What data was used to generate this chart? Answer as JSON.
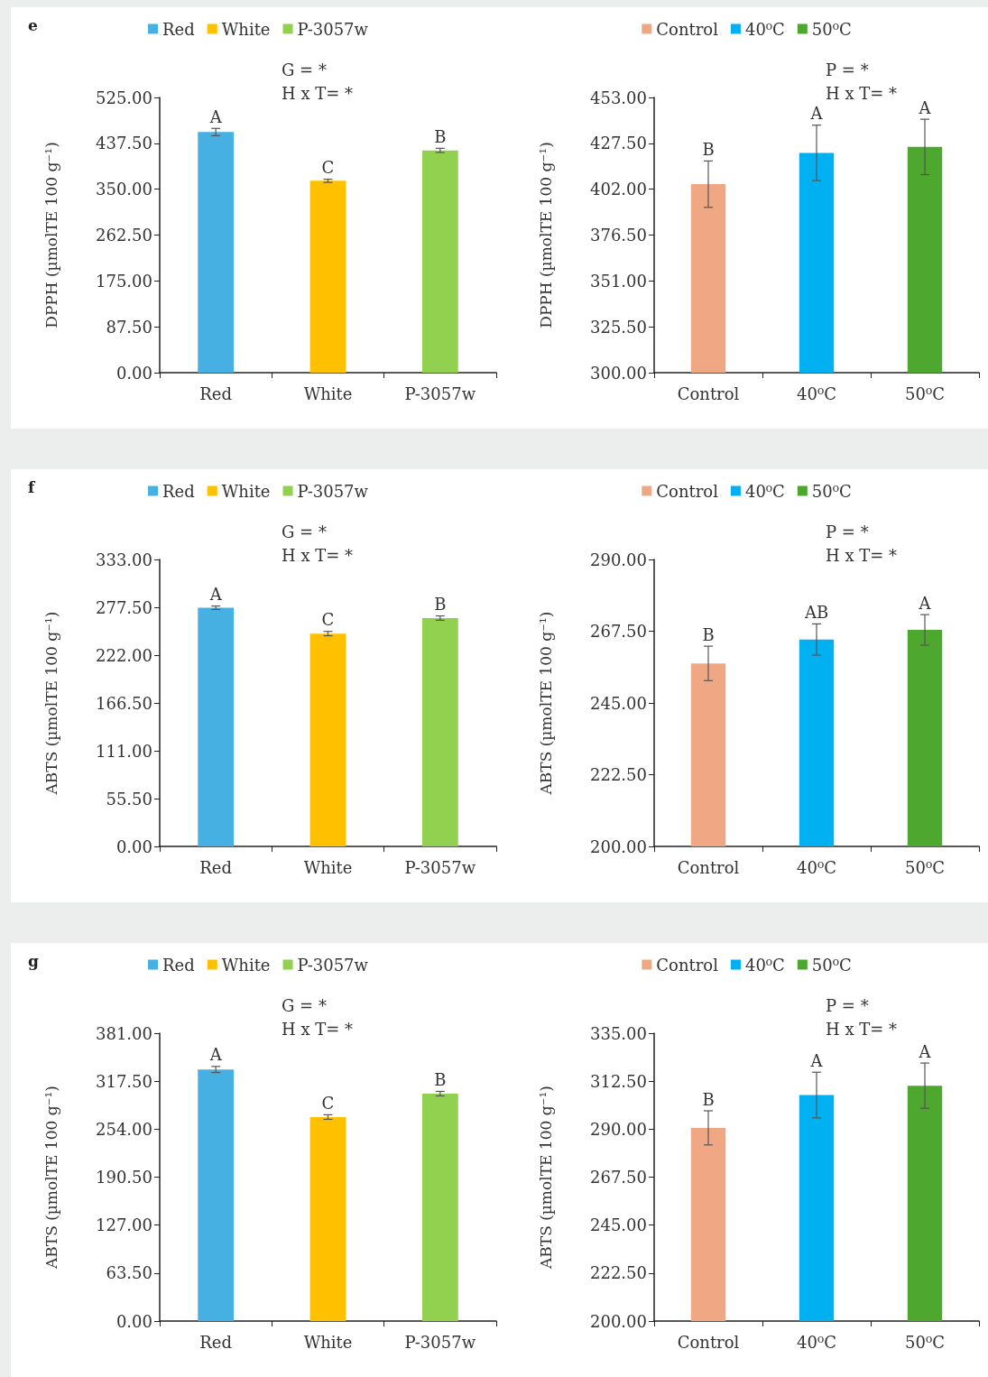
{
  "chart_data": [
    {
      "type": "bar",
      "title": "e",
      "ylabel": "DPPH (µmolTE 100 g⁻¹)",
      "categories": [
        "Red",
        "White",
        "P-3057w"
      ],
      "legend": "top",
      "grid": false,
      "ylim": [
        0,
        525
      ],
      "yticks": [
        {
          "value": 0,
          "label": "0.00"
        },
        {
          "value": 87.5,
          "label": "87.50"
        },
        {
          "value": 175,
          "label": "175.00"
        },
        {
          "value": 262.5,
          "label": "262.50"
        },
        {
          "value": 350,
          "label": "350.00"
        },
        {
          "value": 437.5,
          "label": "437.50"
        },
        {
          "value": 525,
          "label": "525.00"
        }
      ],
      "series": [
        {
          "name": "Red",
          "color": "#45b0e1",
          "values": [
            459,
            null,
            null
          ],
          "errors": [
            7,
            null,
            null
          ]
        },
        {
          "name": "White",
          "color": "#ffc000",
          "values": [
            null,
            366,
            null
          ],
          "errors": [
            null,
            3,
            null
          ]
        },
        {
          "name": "P-3057w",
          "color": "#92d050",
          "values": [
            null,
            null,
            424
          ],
          "errors": [
            null,
            null,
            4
          ]
        }
      ],
      "annotations": [
        "G = *",
        "H x T= *",
        {
          "text": "A",
          "x": "Red",
          "y": 466
        },
        {
          "text": "C",
          "x": "White",
          "y": 369
        },
        {
          "text": "B",
          "x": "P-3057w",
          "y": 428
        }
      ]
    },
    {
      "type": "bar",
      "ylabel": "DPPH (µmolTE 100 g⁻¹)",
      "categories": [
        "Control",
        "40⁰C",
        "50⁰C"
      ],
      "legend": "top",
      "grid": false,
      "ylim": [
        300,
        453
      ],
      "yticks": [
        {
          "value": 300,
          "label": "300.00"
        },
        {
          "value": 325.5,
          "label": "325.50"
        },
        {
          "value": 351,
          "label": "351.00"
        },
        {
          "value": 376.5,
          "label": "376.50"
        },
        {
          "value": 402,
          "label": "402.00"
        },
        {
          "value": 427.5,
          "label": "427.50"
        },
        {
          "value": 453,
          "label": "453.00"
        }
      ],
      "series": [
        {
          "name": "Control",
          "color": "#f0a884",
          "values": [
            404.8,
            null,
            null
          ],
          "errors": [
            12.9,
            null,
            null
          ]
        },
        {
          "name": "40⁰C",
          "color": "#00b0f0",
          "values": [
            null,
            422.2,
            null
          ],
          "errors": [
            null,
            15.4,
            null
          ]
        },
        {
          "name": "50⁰C",
          "color": "#4ea72e",
          "values": [
            null,
            null,
            425.5
          ],
          "errors": [
            null,
            null,
            15.4
          ]
        }
      ],
      "annotations": [
        "P = *",
        "H x T= *",
        {
          "text": "B",
          "x": "Control",
          "y": 417.7
        },
        {
          "text": "A",
          "x": "40⁰C",
          "y": 437.6
        },
        {
          "text": "A",
          "x": "50⁰C",
          "y": 440.9
        }
      ]
    },
    {
      "type": "bar",
      "title": "f",
      "ylabel": "ABTS (µmolTE 100 g⁻¹)",
      "categories": [
        "Red",
        "White",
        "P-3057w"
      ],
      "legend": "top",
      "grid": false,
      "ylim": [
        0,
        333
      ],
      "yticks": [
        {
          "value": 0,
          "label": "0.00"
        },
        {
          "value": 55.5,
          "label": "55.50"
        },
        {
          "value": 111,
          "label": "111.00"
        },
        {
          "value": 166.5,
          "label": "166.50"
        },
        {
          "value": 222,
          "label": "222.00"
        },
        {
          "value": 277.5,
          "label": "277.50"
        },
        {
          "value": 333,
          "label": "333.00"
        }
      ],
      "series": [
        {
          "name": "Red",
          "color": "#45b0e1",
          "values": [
            277,
            null,
            null
          ],
          "errors": [
            2,
            null,
            null
          ]
        },
        {
          "name": "White",
          "color": "#ffc000",
          "values": [
            null,
            247,
            null
          ],
          "errors": [
            null,
            2.5,
            null
          ]
        },
        {
          "name": "P-3057w",
          "color": "#92d050",
          "values": [
            null,
            null,
            265
          ],
          "errors": [
            null,
            null,
            2.5
          ]
        }
      ],
      "annotations": [
        "G = *",
        "H x T= *",
        {
          "text": "A",
          "x": "Red",
          "y": 279
        },
        {
          "text": "C",
          "x": "White",
          "y": 249.5
        },
        {
          "text": "B",
          "x": "P-3057w",
          "y": 267.5
        }
      ]
    },
    {
      "type": "bar",
      "ylabel": "ABTS (µmolTE 100 g⁻¹)",
      "categories": [
        "Control",
        "40⁰C",
        "50⁰C"
      ],
      "legend": "top",
      "grid": false,
      "ylim": [
        200,
        290
      ],
      "yticks": [
        {
          "value": 200,
          "label": "200.00"
        },
        {
          "value": 222.5,
          "label": "222.50"
        },
        {
          "value": 245,
          "label": "245.00"
        },
        {
          "value": 267.5,
          "label": "267.50"
        },
        {
          "value": 290,
          "label": "290.00"
        }
      ],
      "series": [
        {
          "name": "Control",
          "color": "#f0a884",
          "values": [
            257.4,
            null,
            null
          ],
          "errors": [
            5.4,
            null,
            null
          ]
        },
        {
          "name": "40⁰C",
          "color": "#00b0f0",
          "values": [
            null,
            264.9,
            null
          ],
          "errors": [
            null,
            4.9,
            null
          ]
        },
        {
          "name": "50⁰C",
          "color": "#4ea72e",
          "values": [
            null,
            null,
            267.9
          ],
          "errors": [
            null,
            null,
            4.8
          ]
        }
      ],
      "annotations": [
        "P = *",
        "H x T= *",
        {
          "text": "B",
          "x": "Control",
          "y": 262.8
        },
        {
          "text": "AB",
          "x": "40⁰C",
          "y": 269.8
        },
        {
          "text": "A",
          "x": "50⁰C",
          "y": 272.7
        }
      ]
    },
    {
      "type": "bar",
      "title": "g",
      "ylabel": "ABTS (µmolTE 100 g⁻¹)",
      "categories": [
        "Red",
        "White",
        "P-3057w"
      ],
      "legend": "top",
      "grid": false,
      "ylim": [
        0,
        381
      ],
      "yticks": [
        {
          "value": 0,
          "label": "0.00"
        },
        {
          "value": 63.5,
          "label": "63.50"
        },
        {
          "value": 127,
          "label": "127.00"
        },
        {
          "value": 190.5,
          "label": "190.50"
        },
        {
          "value": 254,
          "label": "254.00"
        },
        {
          "value": 317.5,
          "label": "317.50"
        },
        {
          "value": 381,
          "label": "381.00"
        }
      ],
      "series": [
        {
          "name": "Red",
          "color": "#45b0e1",
          "values": [
            333,
            null,
            null
          ],
          "errors": [
            4,
            null,
            null
          ]
        },
        {
          "name": "White",
          "color": "#ffc000",
          "values": [
            null,
            270,
            null
          ],
          "errors": [
            null,
            3,
            null
          ]
        },
        {
          "name": "P-3057w",
          "color": "#92d050",
          "values": [
            null,
            null,
            301
          ],
          "errors": [
            null,
            null,
            3
          ]
        }
      ],
      "annotations": [
        "G = *",
        "H x T= *",
        {
          "text": "A",
          "x": "Red",
          "y": 337
        },
        {
          "text": "C",
          "x": "White",
          "y": 273
        },
        {
          "text": "B",
          "x": "P-3057w",
          "y": 304
        }
      ]
    },
    {
      "type": "bar",
      "ylabel": "ABTS (µmolTE 100 g⁻¹)",
      "categories": [
        "Control",
        "40⁰C",
        "50⁰C"
      ],
      "legend": "top",
      "grid": false,
      "ylim": [
        200,
        335
      ],
      "yticks": [
        {
          "value": 200,
          "label": "200.00"
        },
        {
          "value": 222.5,
          "label": "222.50"
        },
        {
          "value": 245,
          "label": "245.00"
        },
        {
          "value": 267.5,
          "label": "267.50"
        },
        {
          "value": 290,
          "label": "290.00"
        },
        {
          "value": 312.5,
          "label": "312.50"
        },
        {
          "value": 335,
          "label": "335.00"
        }
      ],
      "series": [
        {
          "name": "Control",
          "color": "#f0a884",
          "values": [
            290.6,
            null,
            null
          ],
          "errors": [
            8,
            null,
            null
          ]
        },
        {
          "name": "40⁰C",
          "color": "#00b0f0",
          "values": [
            null,
            306,
            null
          ],
          "errors": [
            null,
            10.7,
            null
          ]
        },
        {
          "name": "50⁰C",
          "color": "#4ea72e",
          "values": [
            null,
            null,
            310.4
          ],
          "errors": [
            null,
            null,
            10.6
          ]
        }
      ],
      "annotations": [
        "P = *",
        "H x T= *",
        {
          "text": "B",
          "x": "Control",
          "y": 298.6
        },
        {
          "text": "A",
          "x": "40⁰C",
          "y": 316.7
        },
        {
          "text": "A",
          "x": "50⁰C",
          "y": 321
        }
      ]
    }
  ]
}
